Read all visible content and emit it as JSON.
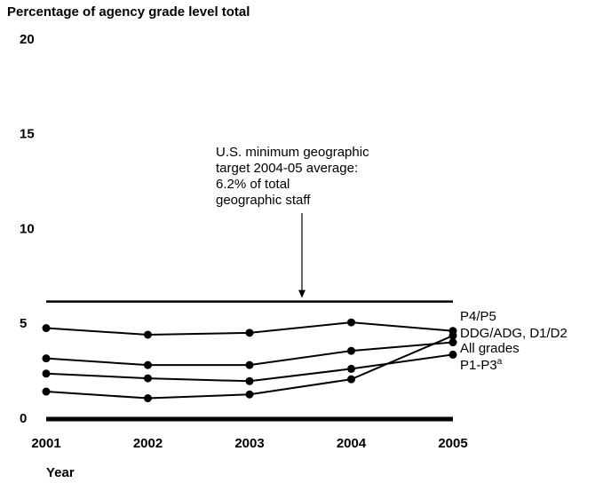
{
  "chart_data": {
    "type": "line",
    "title": "Percentage of agency grade level total",
    "x_label": "Year",
    "x": [
      2001,
      2002,
      2003,
      2004,
      2005
    ],
    "xlim": [
      2001,
      2005
    ],
    "ylim": [
      0,
      20
    ],
    "yticks": [
      0,
      5,
      10,
      15,
      20
    ],
    "series": [
      {
        "name": "P4/P5",
        "color": "#000000",
        "values": [
          4.8,
          4.45,
          4.55,
          5.1,
          4.65
        ]
      },
      {
        "name": "DDG/ADG, D1/D2",
        "color": "#000000",
        "values": [
          1.45,
          1.1,
          1.3,
          2.1,
          4.4
        ]
      },
      {
        "name": "All grades",
        "color": "#000000",
        "values": [
          3.2,
          2.85,
          2.85,
          3.6,
          4.05
        ]
      },
      {
        "name": "P1-P3",
        "name_note": "a",
        "color": "#000000",
        "values": [
          2.4,
          2.15,
          2.0,
          2.65,
          3.4
        ]
      }
    ],
    "reference_line": {
      "value": 6.2,
      "color": "#000000",
      "annotation": [
        "U.S. minimum geographic",
        "target 2004-05 average:",
        "6.2% of total",
        "geographic staff"
      ]
    }
  }
}
